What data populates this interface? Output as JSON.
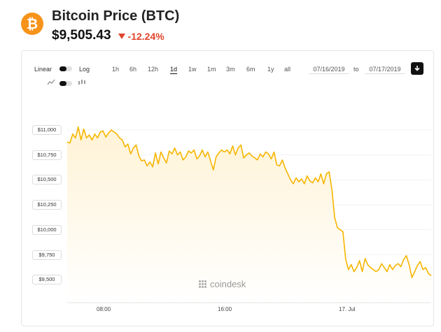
{
  "header": {
    "logo_glyph": "₿",
    "title": "Bitcoin Price (BTC)",
    "price": "$9,505.43",
    "change": "-12.24%",
    "change_color": "#e0432b",
    "brand_color": "#f7931a"
  },
  "controls": {
    "linear_label": "Linear",
    "log_label": "Log",
    "ranges": [
      "1h",
      "6h",
      "12h",
      "1d",
      "1w",
      "1m",
      "3m",
      "6m",
      "1y",
      "all"
    ],
    "active_range": "1d",
    "date_from": "07/16/2019",
    "to_label": "to",
    "date_to": "07/17/2019",
    "download_icon": "download-icon"
  },
  "watermark": "coindesk",
  "chart_data": {
    "type": "area",
    "title": "",
    "xlabel": "",
    "ylabel": "",
    "x_ticks": [
      "08:00",
      "16:00",
      "17. Jul"
    ],
    "y_ticks": [
      "$11,000",
      "$10,750",
      "$10,500",
      "$10,250",
      "$10,000",
      "$9,750",
      "$9,500"
    ],
    "ylim": [
      9450,
      11050
    ],
    "line_color": "#f7b500",
    "series": [
      {
        "values": [
          10880,
          10870,
          10960,
          10920,
          11030,
          10900,
          11010,
          10920,
          10950,
          10900,
          10960,
          10920,
          10980,
          10990,
          10930,
          10970,
          11000,
          10980,
          10960,
          10920,
          10900,
          10830,
          10860,
          10760,
          10820,
          10850,
          10740,
          10690,
          10700,
          10640,
          10680,
          10630,
          10770,
          10660,
          10780,
          10720,
          10670,
          10790,
          10760,
          10820,
          10750,
          10780,
          10700,
          10730,
          10790,
          10770,
          10800,
          10710,
          10740,
          10800,
          10730,
          10780,
          10690,
          10600,
          10730,
          10770,
          10800,
          10780,
          10800,
          10760,
          10840,
          10750,
          10820,
          10850,
          10720,
          10750,
          10770,
          10740,
          10720,
          10700,
          10760,
          10730,
          10780,
          10760,
          10710,
          10780,
          10650,
          10640,
          10700,
          10620,
          10560,
          10500,
          10460,
          10520,
          10480,
          10510,
          10460,
          10540,
          10490,
          10470,
          10520,
          10480,
          10560,
          10460,
          10560,
          10580,
          10400,
          10120,
          10020,
          10000,
          9980,
          9700,
          9600,
          9650,
          9580,
          9620,
          9690,
          9580,
          9710,
          9650,
          9620,
          9600,
          9580,
          9600,
          9660,
          9620,
          9580,
          9650,
          9600,
          9640,
          9660,
          9630,
          9700,
          9740,
          9650,
          9520,
          9580,
          9640,
          9680,
          9600,
          9620,
          9560,
          9540
        ]
      }
    ]
  }
}
